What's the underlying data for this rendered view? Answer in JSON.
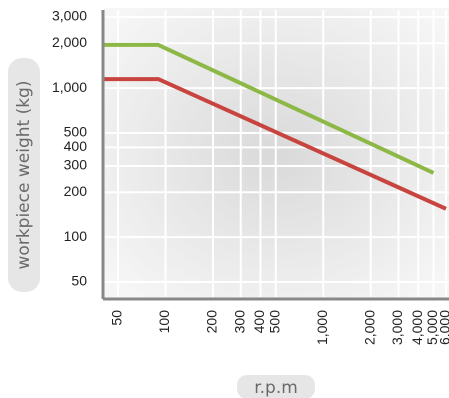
{
  "chart_data": {
    "type": "line",
    "xlabel": "r.p.m",
    "ylabel": "workpiece weight (kg)",
    "x_scale": "log",
    "y_scale": "log",
    "xlim": [
      40,
      6000
    ],
    "ylim": [
      30,
      3000
    ],
    "x_ticks": [
      "50",
      "100",
      "200",
      "300",
      "400",
      "500",
      "1,000",
      "2,000",
      "3,000",
      "4,000",
      "5,000",
      "6,000"
    ],
    "y_ticks": [
      "50",
      "100",
      "200",
      "300",
      "400",
      "500",
      "1,000",
      "2,000",
      "3,000"
    ],
    "grid": true,
    "series": [
      {
        "color": "#8db846",
        "points": [
          [
            40,
            1950
          ],
          [
            90,
            1950
          ],
          [
            5000,
            270
          ]
        ]
      },
      {
        "color": "#c8453f",
        "points": [
          [
            40,
            1150
          ],
          [
            90,
            1150
          ],
          [
            6000,
            155
          ]
        ]
      }
    ]
  },
  "colors": {
    "plot_background_center": "#d9d9d9",
    "plot_background_edge": "#f6f6f6",
    "grid": "#ffffff",
    "axis": "#888888",
    "label_pill": "#e6e6e6"
  }
}
